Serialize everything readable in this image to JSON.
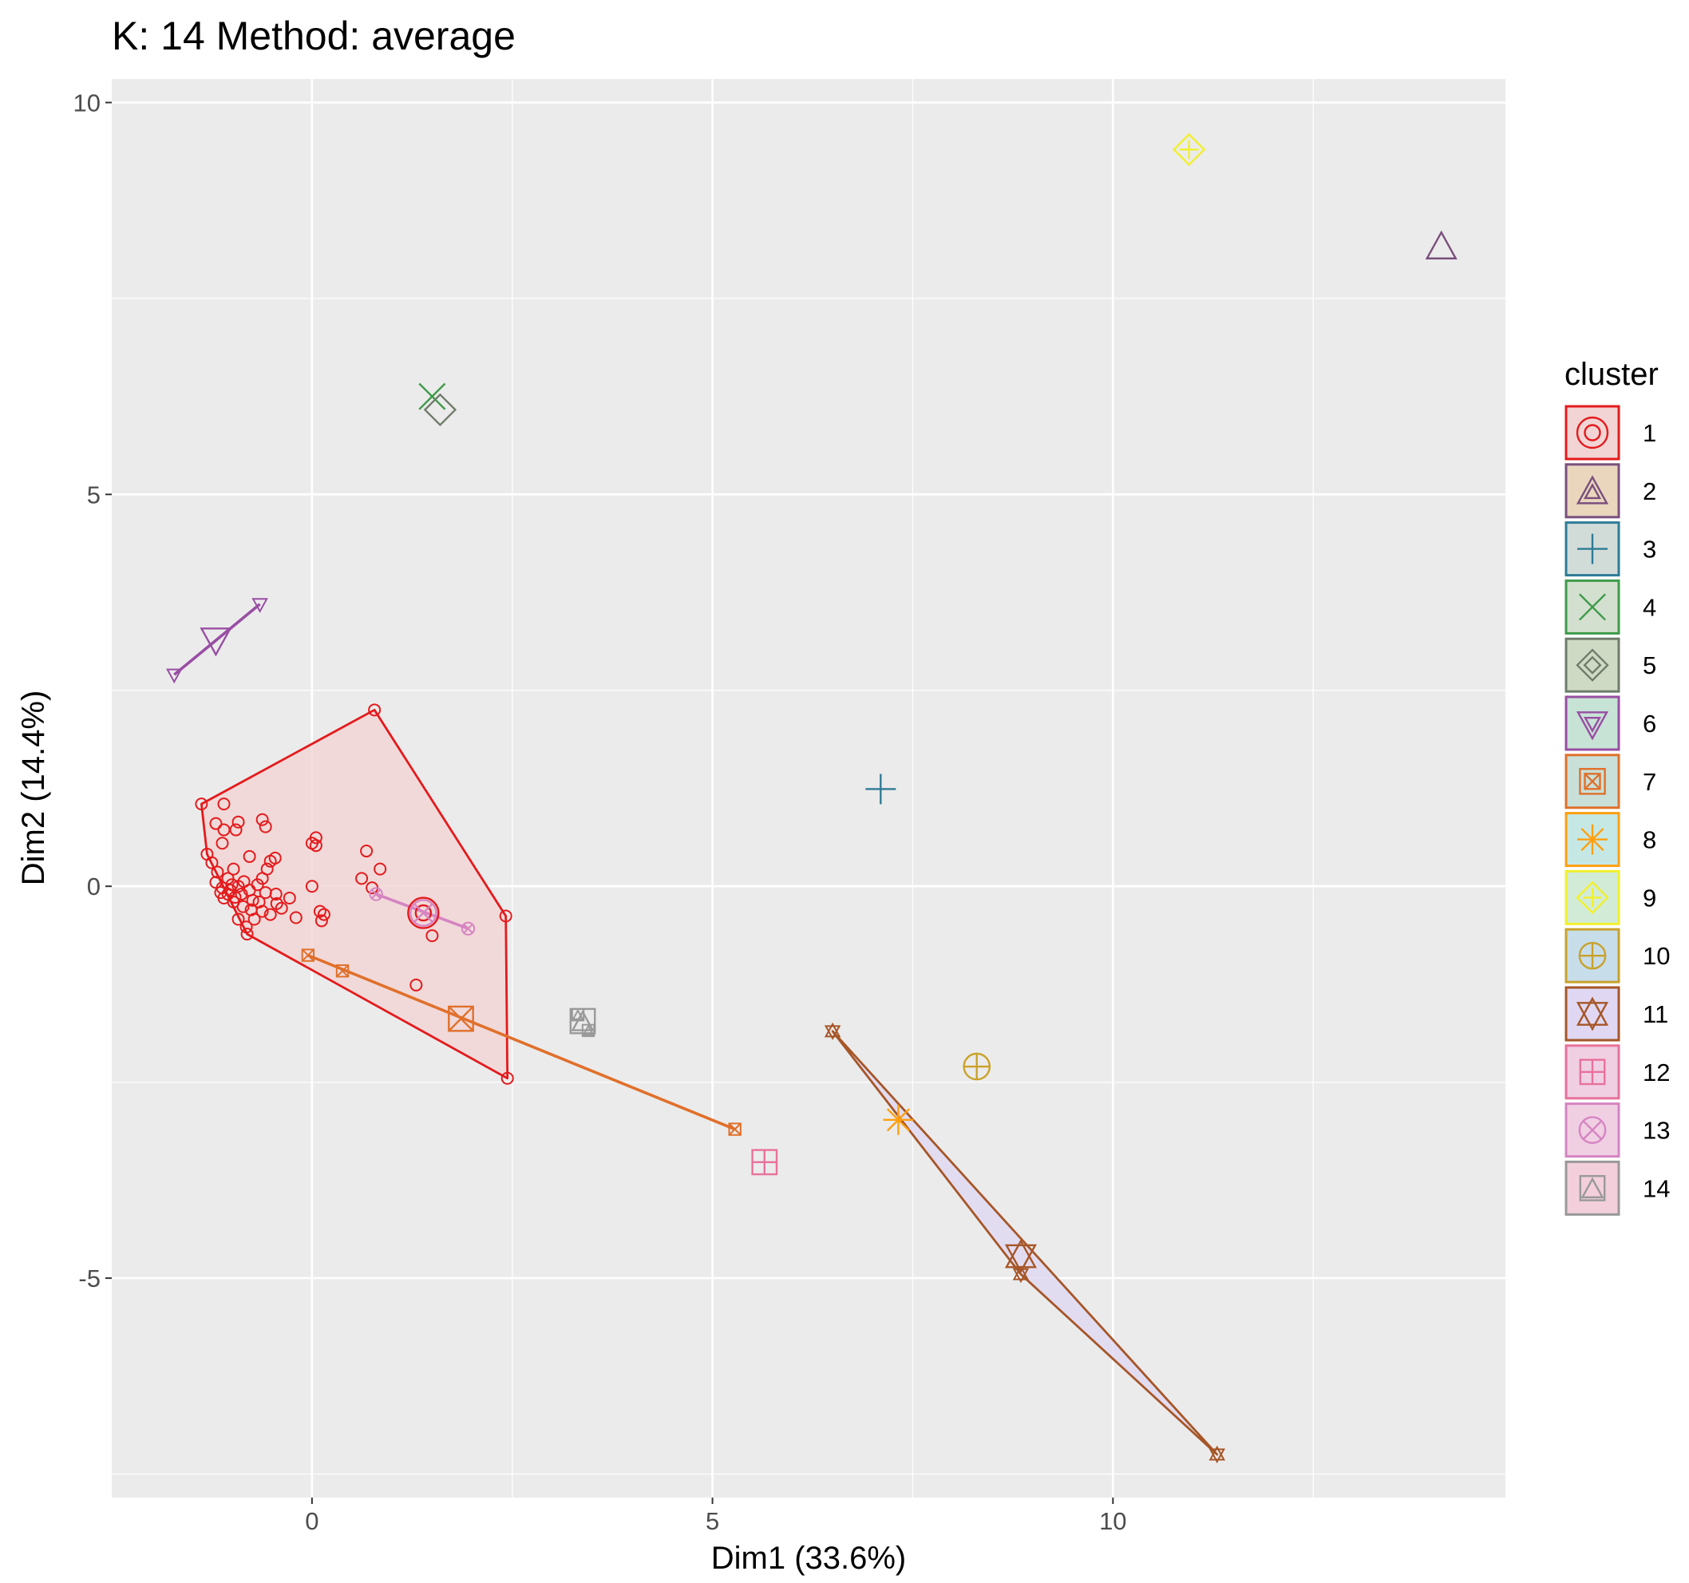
{
  "chart_data": {
    "type": "scatter",
    "title": "K: 14  Method: average",
    "xlabel": "Dim1 (33.6%)",
    "ylabel": "Dim2 (14.4%)",
    "xlim": [
      -2.5,
      14.9
    ],
    "ylim": [
      -7.8,
      10.3
    ],
    "x_ticks": [
      "0",
      "5",
      "10"
    ],
    "y_ticks": [
      "10",
      "5",
      "0",
      "-5"
    ],
    "grid": true,
    "legend": {
      "title": "cluster",
      "position": "right"
    },
    "clusters": [
      {
        "name": "1",
        "color": "#e41a1c",
        "fill": "#f2d4d4",
        "symbol": "circle-o",
        "center": [
          1.39,
          -0.34
        ],
        "hull": [
          [
            -1.38,
            1.05
          ],
          [
            0.78,
            2.25
          ],
          [
            2.42,
            -0.38
          ],
          [
            2.44,
            -2.45
          ],
          [
            -0.81,
            -0.61
          ],
          [
            -1.31,
            0.41
          ]
        ],
        "points": [
          [
            -1.38,
            1.05
          ],
          [
            0.78,
            2.25
          ],
          [
            2.42,
            -0.38
          ],
          [
            2.44,
            -2.45
          ],
          [
            -1.31,
            0.41
          ],
          [
            -0.81,
            -0.61
          ],
          [
            -1.1,
            1.05
          ],
          [
            -1.2,
            0.8
          ],
          [
            -1.1,
            0.72
          ],
          [
            -0.92,
            0.82
          ],
          [
            -0.95,
            0.72
          ],
          [
            -1.12,
            0.55
          ],
          [
            -0.62,
            0.85
          ],
          [
            -0.58,
            0.76
          ],
          [
            0.05,
            0.62
          ],
          [
            0.05,
            0.52
          ],
          [
            0.0,
            0.55
          ],
          [
            0.68,
            0.45
          ],
          [
            -1.25,
            0.3
          ],
          [
            -0.98,
            0.22
          ],
          [
            -0.78,
            0.38
          ],
          [
            -0.52,
            0.32
          ],
          [
            -0.46,
            0.36
          ],
          [
            -0.56,
            0.22
          ],
          [
            -0.62,
            0.1
          ],
          [
            0.62,
            0.1
          ],
          [
            0.85,
            0.22
          ],
          [
            -1.18,
            0.18
          ],
          [
            -1.05,
            0.1
          ],
          [
            -1.2,
            0.05
          ],
          [
            -1.12,
            -0.02
          ],
          [
            -1.02,
            -0.05
          ],
          [
            -0.92,
            0.0
          ],
          [
            -0.88,
            -0.1
          ],
          [
            -0.78,
            -0.05
          ],
          [
            -0.68,
            0.02
          ],
          [
            -0.58,
            -0.08
          ],
          [
            -0.45,
            -0.1
          ],
          [
            -1.1,
            -0.15
          ],
          [
            -0.98,
            -0.2
          ],
          [
            -0.86,
            -0.26
          ],
          [
            -0.76,
            -0.3
          ],
          [
            -0.66,
            -0.2
          ],
          [
            -0.52,
            -0.36
          ],
          [
            -0.38,
            -0.28
          ],
          [
            -0.28,
            -0.15
          ],
          [
            -0.2,
            -0.4
          ],
          [
            0.0,
            0.0
          ],
          [
            0.1,
            -0.32
          ],
          [
            0.15,
            -0.36
          ],
          [
            0.12,
            -0.44
          ],
          [
            0.75,
            -0.02
          ],
          [
            -0.92,
            -0.42
          ],
          [
            -0.82,
            -0.52
          ],
          [
            -0.72,
            -0.42
          ],
          [
            -0.62,
            -0.32
          ],
          [
            -1.05,
            -0.1
          ],
          [
            -1.14,
            -0.08
          ],
          [
            -0.96,
            -0.14
          ],
          [
            -1.0,
            0.02
          ],
          [
            -0.85,
            0.06
          ],
          [
            -0.74,
            -0.18
          ],
          [
            -0.44,
            -0.22
          ],
          [
            1.3,
            -1.26
          ],
          [
            1.5,
            -0.63
          ]
        ]
      },
      {
        "name": "2",
        "color": "#7a4f7d",
        "fill": "#e9d6bd",
        "symbol": "triangle-up-open",
        "center": [
          14.1,
          8.15
        ],
        "points": []
      },
      {
        "name": "3",
        "color": "#2e7b96",
        "fill": "#d1dcd9",
        "symbol": "plus",
        "center": [
          7.1,
          1.24
        ],
        "points": []
      },
      {
        "name": "4",
        "color": "#3f9a4a",
        "fill": "#d4e0cf",
        "symbol": "cross",
        "center": [
          1.5,
          6.25
        ],
        "points": []
      },
      {
        "name": "5",
        "color": "#6f7c6b",
        "fill": "#cfdac5",
        "symbol": "diamond-open",
        "center": [
          1.6,
          6.08
        ],
        "points": []
      },
      {
        "name": "6",
        "color": "#984ea3",
        "fill": "#c7e3d6",
        "symbol": "triangle-down-open",
        "center": [
          -1.2,
          3.15
        ],
        "hull": [
          [
            -1.72,
            2.7
          ],
          [
            -0.65,
            3.6
          ]
        ],
        "points": [
          [
            -1.72,
            2.7
          ],
          [
            -0.65,
            3.6
          ]
        ]
      },
      {
        "name": "7",
        "color": "#e0702b",
        "fill": "#c9e0d8",
        "symbol": "square-x",
        "center": [
          1.86,
          -1.69
        ],
        "hull": [
          [
            -0.05,
            -0.88
          ],
          [
            5.28,
            -3.1
          ]
        ],
        "points": [
          [
            -0.05,
            -0.88
          ],
          [
            0.38,
            -1.08
          ],
          [
            5.28,
            -3.1
          ]
        ]
      },
      {
        "name": "8",
        "color": "#ff9f10",
        "fill": "#c6e8e5",
        "symbol": "asterisk",
        "center": [
          7.32,
          -2.98
        ],
        "points": []
      },
      {
        "name": "9",
        "color": "#f2f02c",
        "fill": "#d2ebd7",
        "symbol": "diamond-plus",
        "center": [
          10.95,
          9.4
        ],
        "points": []
      },
      {
        "name": "10",
        "color": "#c9a22a",
        "fill": "#c7ddea",
        "symbol": "circle-plus",
        "center": [
          8.3,
          -2.3
        ],
        "points": []
      },
      {
        "name": "11",
        "color": "#a65628",
        "fill": "#e0d8f2",
        "symbol": "star-of-david",
        "center": [
          8.85,
          -4.72
        ],
        "hull": [
          [
            6.5,
            -1.85
          ],
          [
            8.85,
            -4.95
          ],
          [
            11.3,
            -7.25
          ]
        ],
        "points": [
          [
            6.5,
            -1.85
          ],
          [
            8.85,
            -4.95
          ],
          [
            11.3,
            -7.25
          ]
        ]
      },
      {
        "name": "12",
        "color": "#e8719b",
        "fill": "#f0cfe3",
        "symbol": "square-plus",
        "center": [
          5.65,
          -3.52
        ],
        "points": []
      },
      {
        "name": "13",
        "color": "#d684c2",
        "fill": "#f0cfe3",
        "symbol": "circle-x",
        "center": [
          1.39,
          -0.34
        ],
        "hull": [
          [
            0.8,
            -0.1
          ],
          [
            1.95,
            -0.54
          ]
        ],
        "points": [
          [
            0.8,
            -0.1
          ],
          [
            1.95,
            -0.54
          ]
        ]
      },
      {
        "name": "14",
        "color": "#999999",
        "fill": "#f3cfdb",
        "symbol": "square-triangle",
        "center": [
          3.38,
          -1.72
        ],
        "points": [
          [
            3.32,
            -1.64
          ],
          [
            3.45,
            -1.84
          ]
        ]
      }
    ]
  }
}
